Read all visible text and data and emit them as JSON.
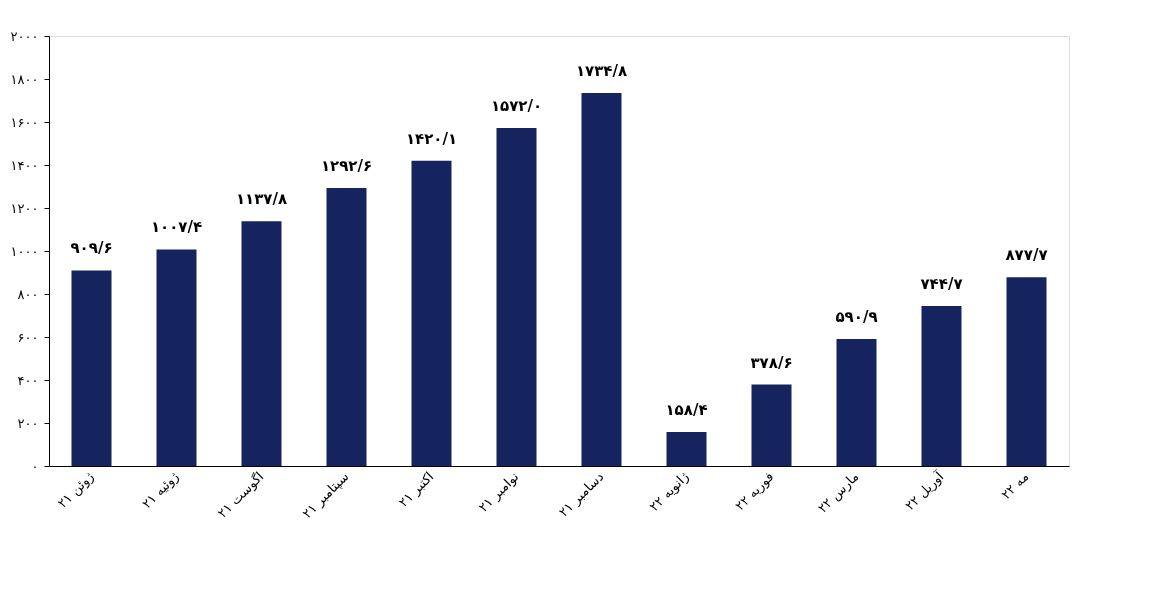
{
  "chart_data": {
    "type": "bar",
    "categories": [
      "ژوئن ۲۱",
      "ژوئیه ۲۱",
      "اگوست ۲۱",
      "سپتامبر ۲۱",
      "اکتبر ۲۱",
      "نوامبر ۲۱",
      "دسامبر ۲۱",
      "ژانویه ۲۲",
      "فوریه ۲۲",
      "مارس ۲۲",
      "آوریل ۲۲",
      "مه ۲۲"
    ],
    "values": [
      909.6,
      1007.4,
      1137.8,
      1292.6,
      1420.1,
      1572.0,
      1734.8,
      158.4,
      378.6,
      590.9,
      744.7,
      877.7
    ],
    "value_labels": [
      "۹۰۹/۶",
      "۱۰۰۷/۴",
      "۱۱۳۷/۸",
      "۱۲۹۲/۶",
      "۱۴۲۰/۱",
      "۱۵۷۲/۰",
      "۱۷۳۴/۸",
      "۱۵۸/۴",
      "۳۷۸/۶",
      "۵۹۰/۹",
      "۷۴۴/۷",
      "۸۷۷/۷"
    ],
    "color": "#15245e",
    "ylim": [
      0,
      2000
    ],
    "yticks": [
      {
        "value": 0,
        "label": "۰"
      },
      {
        "value": 200,
        "label": "۲۰۰"
      },
      {
        "value": 400,
        "label": "۴۰۰"
      },
      {
        "value": 600,
        "label": "۶۰۰"
      },
      {
        "value": 800,
        "label": "۸۰۰"
      },
      {
        "value": 1000,
        "label": "۱۰۰۰"
      },
      {
        "value": 1200,
        "label": "۱۲۰۰"
      },
      {
        "value": 1400,
        "label": "۱۴۰۰"
      },
      {
        "value": 1600,
        "label": "۱۶۰۰"
      },
      {
        "value": 1800,
        "label": "۱۸۰۰"
      },
      {
        "value": 2000,
        "label": "۲۰۰۰"
      }
    ],
    "grid": false
  }
}
